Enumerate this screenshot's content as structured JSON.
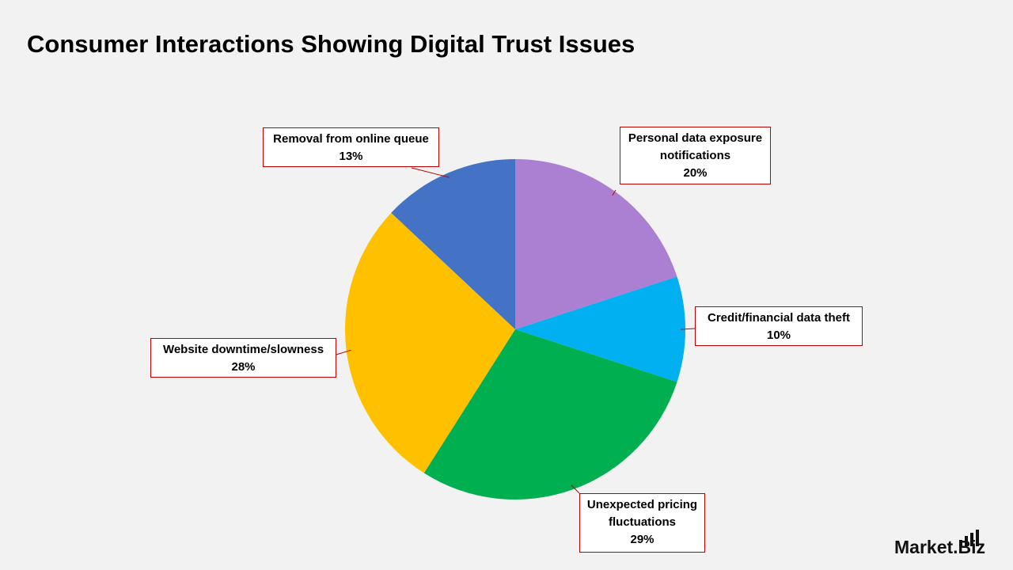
{
  "chart_data": {
    "type": "pie",
    "title": "Consumer Interactions Showing Digital Trust Issues",
    "categories": [
      "Personal data exposure notifications",
      "Credit/financial data theft",
      "Unexpected pricing fluctuations",
      "Website downtime/slowness",
      "Removal from online queue"
    ],
    "values": [
      20,
      10,
      29,
      28,
      13
    ],
    "value_labels": [
      "20%",
      "10%",
      "29%",
      "28%",
      "13%"
    ],
    "colors": [
      "#ab7fd1",
      "#00b0f0",
      "#00b050",
      "#ffc000",
      "#4472c4"
    ]
  },
  "logo": "Market.Biz"
}
